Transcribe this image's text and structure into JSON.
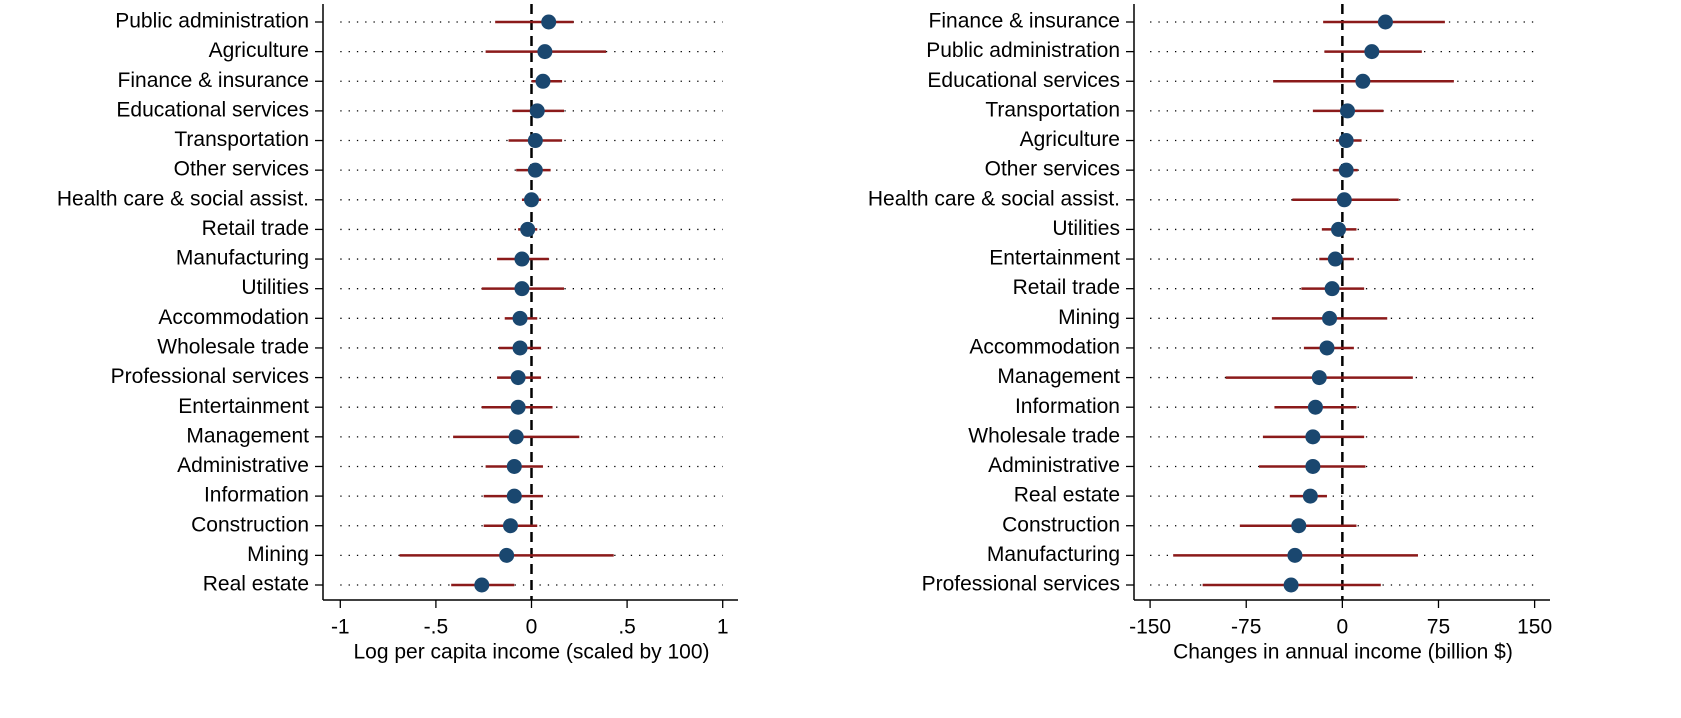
{
  "chart_data": [
    {
      "type": "coefplot",
      "xlabel": "Log per capita income (scaled by 100)",
      "categories": [
        "Public administration",
        "Agriculture",
        "Finance & insurance",
        "Educational services",
        "Transportation",
        "Other services",
        "Health care & social assist.",
        "Retail trade",
        "Manufacturing",
        "Utilities",
        "Accommodation",
        "Wholesale trade",
        "Professional services",
        "Entertainment",
        "Management",
        "Administrative",
        "Information",
        "Construction",
        "Mining",
        "Real estate"
      ],
      "values": [
        0.09,
        0.07,
        0.06,
        0.03,
        0.02,
        0.02,
        0.0,
        -0.02,
        -0.05,
        -0.05,
        -0.06,
        -0.06,
        -0.07,
        -0.07,
        -0.08,
        -0.09,
        -0.09,
        -0.11,
        -0.13,
        -0.26
      ],
      "ci_low": [
        -0.19,
        -0.24,
        0.0,
        -0.1,
        -0.12,
        -0.08,
        -0.05,
        -0.07,
        -0.18,
        -0.26,
        -0.14,
        -0.17,
        -0.18,
        -0.26,
        -0.41,
        -0.24,
        -0.25,
        -0.25,
        -0.69,
        -0.42
      ],
      "ci_high": [
        0.22,
        0.39,
        0.16,
        0.17,
        0.16,
        0.1,
        0.05,
        0.03,
        0.09,
        0.17,
        0.03,
        0.05,
        0.05,
        0.11,
        0.25,
        0.06,
        0.06,
        0.03,
        0.43,
        -0.09
      ],
      "xlim": [
        -1.08,
        1.08
      ],
      "xticks": [
        {
          "value": -1,
          "label": "-1"
        },
        {
          "value": -0.5,
          "label": "-.5"
        },
        0,
        {
          "value": 0.5,
          "label": ".5"
        },
        1
      ],
      "color": "#1a476f",
      "ci_color": "#8b1a1a",
      "grid": true,
      "zero_line": true
    },
    {
      "type": "coefplot",
      "xlabel": "Changes in annual income (billion $)",
      "categories": [
        "Finance & insurance",
        "Public administration",
        "Educational services",
        "Transportation",
        "Agriculture",
        "Other services",
        "Health care & social assist.",
        "Utilities",
        "Entertainment",
        "Retail trade",
        "Mining",
        "Accommodation",
        "Management",
        "Information",
        "Wholesale trade",
        "Administrative",
        "Real estate",
        "Construction",
        "Manufacturing",
        "Professional services"
      ],
      "values": [
        33.6,
        23,
        16,
        4,
        3,
        3,
        1.5,
        -3,
        -5.5,
        -8,
        -10,
        -12,
        -18,
        -21,
        -23,
        -23,
        -25,
        -34,
        -37,
        -40
      ],
      "ci_low": [
        -15,
        -14,
        -54,
        -23,
        -5,
        -7,
        -39,
        -16,
        -18,
        -32,
        -55,
        -30,
        -91,
        -53,
        -62,
        -65,
        -41,
        -80,
        -132,
        -109
      ],
      "ci_high": [
        80,
        62,
        87,
        32,
        15,
        12,
        44,
        11,
        9,
        17,
        35,
        9,
        55,
        11,
        17,
        18,
        -12,
        11,
        59,
        30
      ],
      "xlim": [
        -161,
        162
      ],
      "xticks": [
        -150,
        -75,
        0,
        75,
        150
      ],
      "color": "#1a476f",
      "ci_color": "#8b1a1a",
      "grid": true,
      "zero_line": true
    }
  ]
}
